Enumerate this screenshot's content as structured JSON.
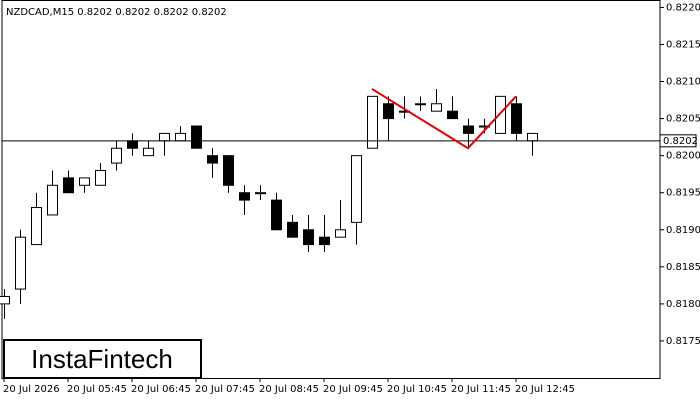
{
  "chart_data": {
    "type": "candlestick",
    "title": "NZDCAD,M15  0.8202 0.8202 0.8202 0.8202",
    "logo": "InstaFintech",
    "categories": [
      "20 Jul 2026",
      null,
      null,
      null,
      "20 Jul 05:45",
      null,
      null,
      null,
      "20 Jul 06:45",
      null,
      null,
      null,
      "20 Jul 07:45",
      null,
      null,
      null,
      "20 Jul 08:45",
      null,
      null,
      null,
      "20 Jul 09:45",
      null,
      null,
      null,
      "20 Jul 10:45",
      null,
      null,
      null,
      "20 Jul 11:45",
      null,
      null,
      null,
      "20 Jul 12:45",
      null
    ],
    "open": [
      0.818,
      0.8182,
      0.8188,
      0.8192,
      0.8197,
      0.8196,
      0.8196,
      0.8199,
      0.8202,
      0.82,
      0.8202,
      0.8202,
      0.8204,
      0.82,
      0.82,
      0.8195,
      0.8195,
      0.8194,
      0.8191,
      0.819,
      0.8189,
      0.8189,
      0.8191,
      0.8201,
      0.8207,
      0.8206,
      0.8207,
      0.8206,
      0.8206,
      0.8204,
      0.8204,
      0.8203,
      0.8207,
      0.8202
    ],
    "high": [
      0.8182,
      0.819,
      0.8195,
      0.8198,
      0.8198,
      0.8197,
      0.8199,
      0.8202,
      0.8203,
      0.8202,
      0.8203,
      0.8204,
      0.8204,
      0.8201,
      0.82,
      0.8196,
      0.8196,
      0.8195,
      0.8192,
      0.8192,
      0.8192,
      0.8194,
      0.82,
      0.8208,
      0.8208,
      0.8208,
      0.8208,
      0.8209,
      0.8208,
      0.8205,
      0.8205,
      0.8208,
      0.8208,
      0.8203
    ],
    "low": [
      0.8178,
      0.818,
      0.8188,
      0.8192,
      0.8195,
      0.8195,
      0.8196,
      0.8198,
      0.82,
      0.82,
      0.82,
      0.8202,
      0.8201,
      0.8197,
      0.8195,
      0.8192,
      0.8194,
      0.819,
      0.8189,
      0.8187,
      0.8187,
      0.8189,
      0.8188,
      0.8201,
      0.8202,
      0.8205,
      0.8206,
      0.8206,
      0.8205,
      0.8201,
      0.8203,
      0.8203,
      0.8202,
      0.82
    ],
    "close": [
      0.8181,
      0.8189,
      0.8193,
      0.8196,
      0.8195,
      0.8197,
      0.8198,
      0.8201,
      0.8201,
      0.8201,
      0.8203,
      0.8203,
      0.8201,
      0.8199,
      0.8196,
      0.8194,
      0.8195,
      0.819,
      0.8189,
      0.8188,
      0.8188,
      0.819,
      0.82,
      0.8208,
      0.8205,
      0.8206,
      0.8207,
      0.8207,
      0.8205,
      0.8203,
      0.8204,
      0.8208,
      0.8203,
      0.8203
    ],
    "ylim": [
      0.817,
      0.8221
    ],
    "yticks": [
      {
        "value": 0.8175,
        "label": "0.8175"
      },
      {
        "value": 0.818,
        "label": "0.8180"
      },
      {
        "value": 0.8185,
        "label": "0.8185"
      },
      {
        "value": 0.819,
        "label": "0.8190"
      },
      {
        "value": 0.8195,
        "label": "0.8195"
      },
      {
        "value": 0.82,
        "label": "0.8200"
      },
      {
        "value": 0.8205,
        "label": "0.8205"
      },
      {
        "value": 0.821,
        "label": "0.8210"
      },
      {
        "value": 0.8215,
        "label": "0.8215"
      },
      {
        "value": 0.822,
        "label": "0.8220"
      }
    ],
    "current_price": 0.8202,
    "pattern": {
      "color": "#e00000",
      "x": [
        23,
        29,
        32
      ],
      "values": [
        0.8209,
        0.8201,
        0.8208
      ]
    }
  }
}
